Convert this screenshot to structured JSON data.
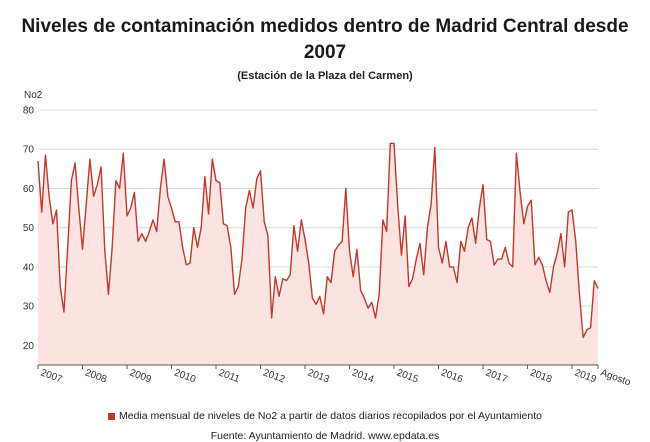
{
  "title_line1": "Niveles de contaminación medidos dentro de Madrid Central desde",
  "title_line2": "2007",
  "subtitle": "(Estación de la Plaza del Carmen)",
  "legend": "Media mensual de niveles de No2 a partir de datos diarios recopilados por el Ayuntamiento",
  "source": "Fuente: Ayuntamiento de Madrid. www.epdata.es",
  "colors": {
    "line": "#c0392b",
    "fill": "#fbe3e1",
    "grid": "#d9d9d9"
  },
  "chart_data": {
    "type": "area",
    "title": "Niveles de contaminación medidos dentro de Madrid Central desde 2007",
    "subtitle": "(Estación de la Plaza del Carmen)",
    "ylabel": "No2",
    "ylim": [
      15,
      80
    ],
    "yticks": [
      20,
      30,
      40,
      50,
      60,
      70,
      80
    ],
    "x_tick_labels": [
      "2007",
      "2008",
      "2009",
      "2010",
      "2011",
      "2012",
      "2013",
      "2014",
      "2015",
      "2016",
      "2017",
      "2018",
      "2019",
      "Agosto"
    ],
    "grid": true,
    "legend_position": "bottom",
    "series": [
      {
        "name": "Media mensual de niveles de No2 a partir de datos diarios recopilados por el Ayuntamiento",
        "start": "2007-01",
        "end": "2019-08",
        "values": [
          67,
          54,
          68.5,
          58,
          51,
          54.5,
          35,
          28.5,
          45,
          62,
          66.5,
          55,
          44.5,
          56,
          67.5,
          58,
          61,
          65.5,
          44.5,
          33,
          45,
          62,
          60,
          69,
          53,
          55,
          59,
          46.5,
          48.5,
          46.5,
          49,
          52,
          49,
          60,
          67.5,
          58,
          55,
          51.5,
          51.5,
          45,
          40.5,
          41,
          50,
          45,
          50,
          63,
          53.5,
          67.5,
          62,
          61.5,
          51,
          50.5,
          45,
          33,
          35,
          42,
          55,
          59.5,
          55,
          62.5,
          64.5,
          51.5,
          48,
          27,
          37.5,
          32.5,
          37,
          36.5,
          38,
          50.5,
          44,
          52,
          47,
          41,
          32,
          30.5,
          32.5,
          28,
          37.5,
          36,
          44,
          45.5,
          46.5,
          60,
          44,
          37.5,
          44.5,
          34,
          32,
          29.5,
          31,
          27,
          33,
          52,
          49,
          71.5,
          71.5,
          55.5,
          43,
          53,
          35,
          37,
          42,
          46,
          38,
          50,
          56,
          70.5,
          45,
          41,
          46.5,
          40,
          40,
          36,
          46.5,
          44,
          50,
          52.5,
          46,
          55,
          61,
          47,
          46.5,
          40.5,
          42,
          42,
          45,
          41,
          40,
          69,
          59,
          51,
          55.5,
          57,
          40.5,
          42.5,
          40.5,
          36.5,
          33.5,
          40,
          43.5,
          48.5,
          40,
          54,
          54.5,
          46.5,
          33,
          22,
          24,
          24.5,
          36.5,
          34.5
        ]
      }
    ]
  }
}
